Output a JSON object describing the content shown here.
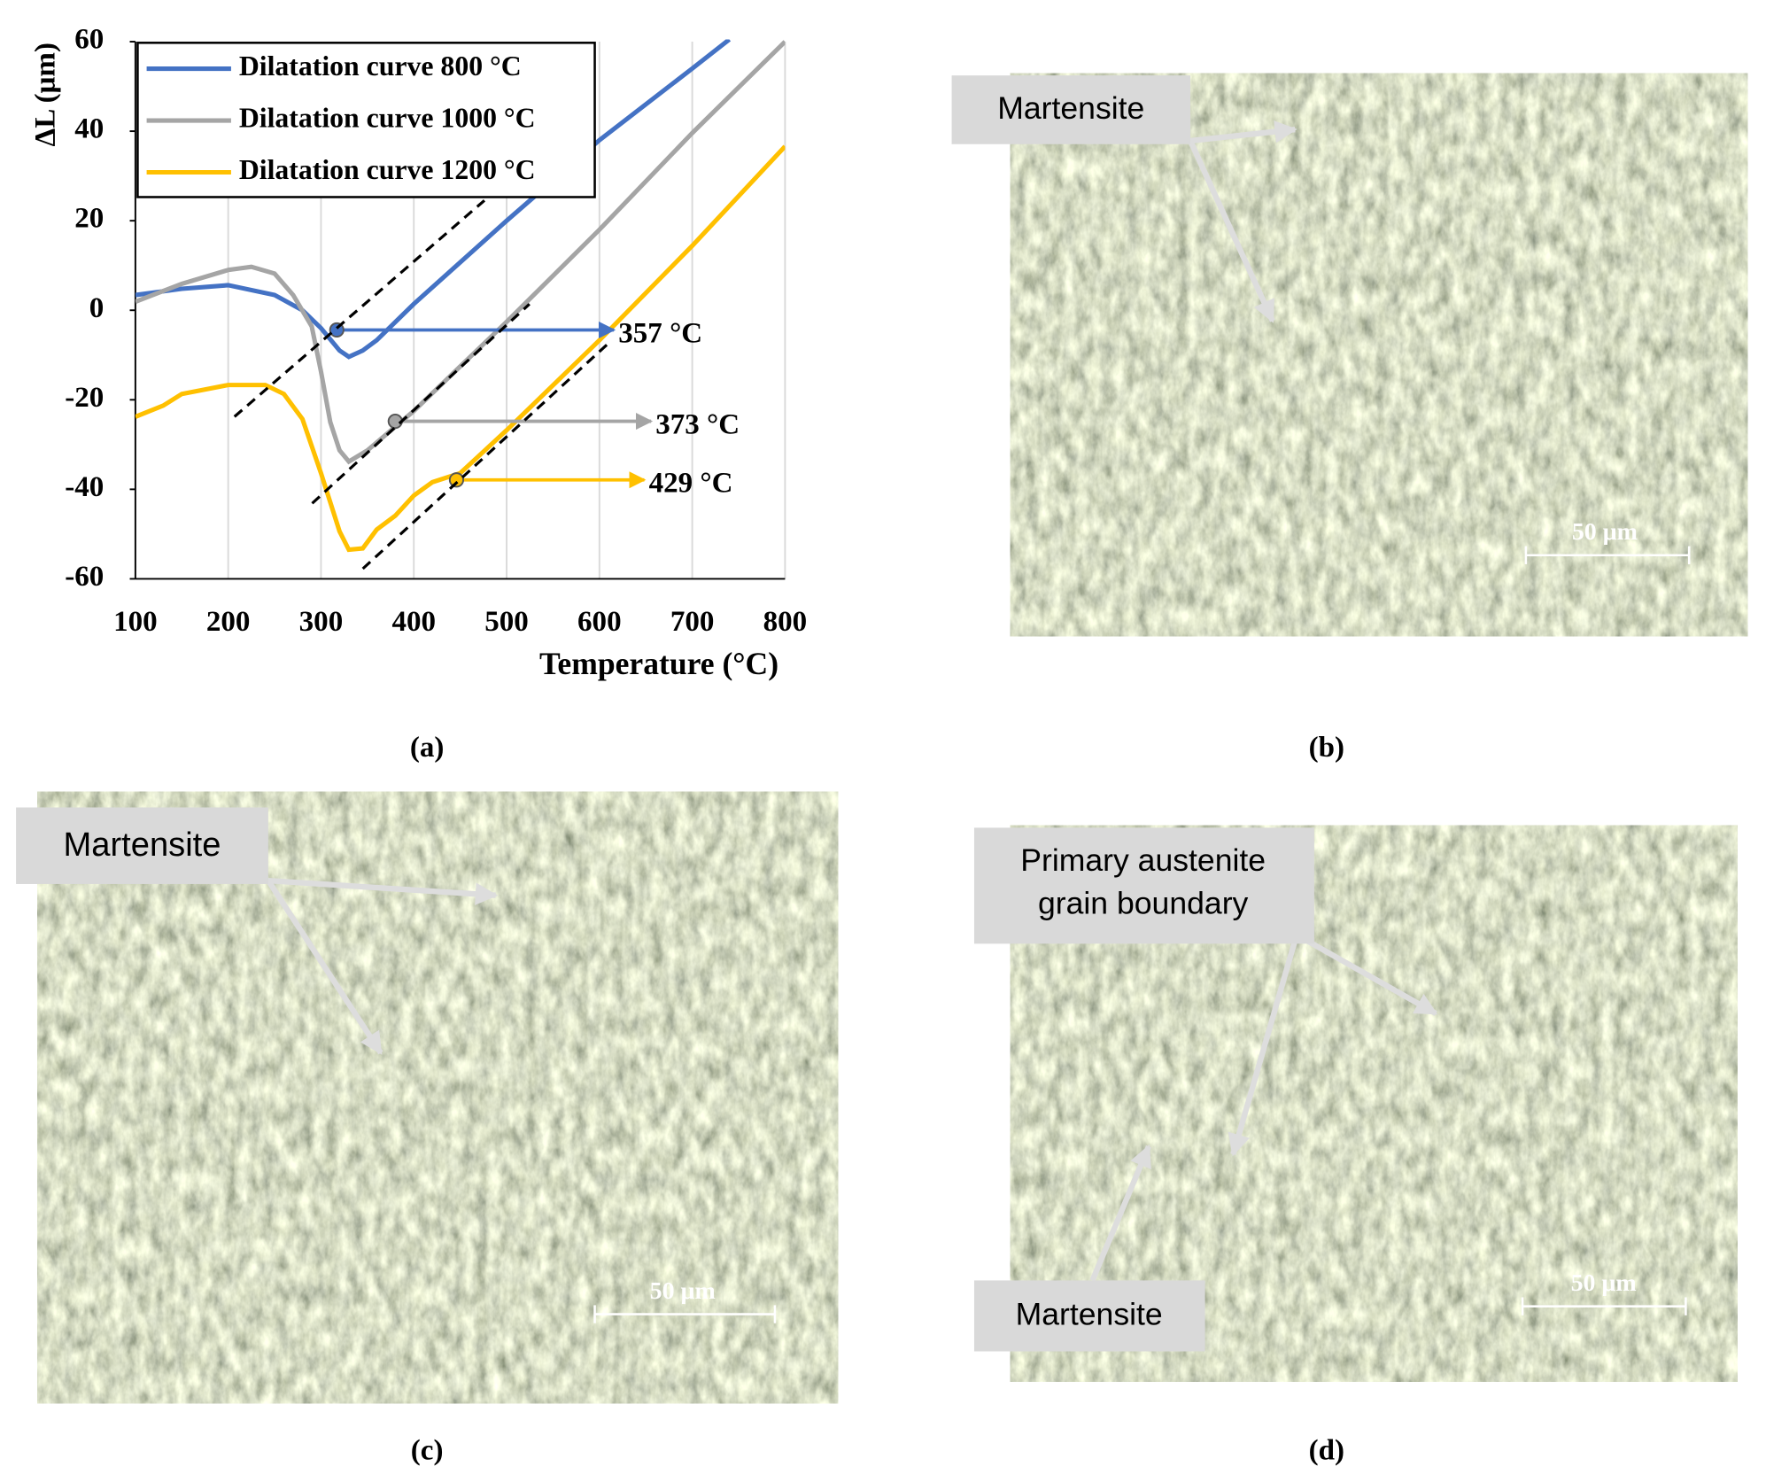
{
  "chart_data": {
    "type": "line",
    "y_label": "ΔL (μm)",
    "x_label": "Temperature (°C)",
    "xlim": [
      100,
      800
    ],
    "xticks": [
      100,
      200,
      300,
      400,
      500,
      600,
      700,
      800
    ],
    "ylim": [
      -60,
      60
    ],
    "yticks": [
      -60,
      -40,
      -20,
      0,
      20,
      40,
      60
    ],
    "grid": "x",
    "legend": "top-left",
    "series": [
      {
        "name": "Dilatation curve 800 °C",
        "color": "#4472c4",
        "x": [
          100,
          150,
          200,
          250,
          280,
          300,
          320,
          330,
          345,
          360,
          400,
          500,
          600,
          700,
          740
        ],
        "values": [
          3.4,
          4.8,
          5.6,
          3.4,
          0,
          -4,
          -9,
          -10.4,
          -9,
          -6.7,
          1.4,
          20,
          38,
          54,
          60.5
        ]
      },
      {
        "name": "Dilatation curve 1000 °C",
        "color": "#a5a5a5",
        "x": [
          100,
          150,
          200,
          225,
          250,
          270,
          290,
          300,
          310,
          320,
          330,
          350,
          400,
          500,
          600,
          700,
          800
        ],
        "values": [
          1.9,
          5.9,
          9,
          9.7,
          8.2,
          3.4,
          -3.6,
          -13.7,
          -25,
          -31.3,
          -33.8,
          -31.3,
          -22.5,
          -2.6,
          18,
          39.6,
          60
        ]
      },
      {
        "name": "Dilatation curve 1200 °C",
        "color": "#ffc000",
        "x": [
          100,
          130,
          150,
          200,
          240,
          260,
          280,
          300,
          320,
          330,
          345,
          360,
          380,
          400,
          420,
          450,
          500,
          600,
          700,
          800
        ],
        "values": [
          -23.8,
          -21.3,
          -18.7,
          -16.7,
          -16.7,
          -18.7,
          -24.3,
          -36.4,
          -49.4,
          -53.5,
          -53.2,
          -49,
          -45.9,
          -41.4,
          -38.4,
          -36.4,
          -26.8,
          -6.7,
          14.4,
          36.6
        ]
      }
    ],
    "annotations": [
      {
        "label": "357 °C",
        "x": 317,
        "y": -4.4,
        "color": "#4472c4"
      },
      {
        "label": "373 °C",
        "x": 380,
        "y": -24.8,
        "color": "#a5a5a5"
      },
      {
        "label": "429 °C",
        "x": 446,
        "y": -37.9,
        "color": "#ffc000"
      }
    ]
  },
  "panels": [
    "(a)",
    "(b)",
    "(c)",
    "(d)"
  ],
  "micrographs": [
    {
      "labels": [
        [
          "Martensite"
        ]
      ],
      "scale_bar": "50 μm"
    },
    {
      "labels": [
        [
          "Martensite"
        ]
      ],
      "scale_bar": "50 μm"
    },
    {
      "labels": [
        [
          "Primary austenite",
          "grain boundary"
        ],
        [
          "Martensite"
        ]
      ],
      "scale_bar": "50 μm"
    }
  ]
}
